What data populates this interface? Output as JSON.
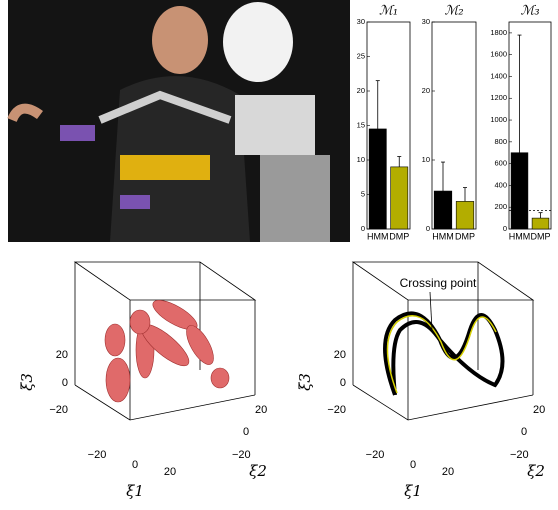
{
  "chart_data": [
    {
      "type": "bar",
      "title": "ℳ₁",
      "categories": [
        "HMM",
        "DMP"
      ],
      "colors": [
        "#000000",
        "#b3ad00"
      ],
      "values": [
        14.5,
        9
      ],
      "errors": [
        7,
        1.5
      ],
      "ylim": [
        0,
        30
      ],
      "yticks": [
        0,
        5,
        10,
        15,
        20,
        25,
        30
      ]
    },
    {
      "type": "bar",
      "title": "ℳ₂",
      "categories": [
        "HMM",
        "DMP"
      ],
      "colors": [
        "#000000",
        "#b3ad00"
      ],
      "values": [
        5.5,
        4
      ],
      "errors": [
        4.2,
        2
      ],
      "ylim": [
        0,
        30
      ],
      "yticks": [
        0,
        10,
        20,
        30
      ]
    },
    {
      "type": "bar",
      "title": "ℳ₃",
      "categories": [
        "HMM",
        "DMP"
      ],
      "colors": [
        "#000000",
        "#b3ad00"
      ],
      "values": [
        700,
        100
      ],
      "errors": [
        1080,
        50
      ],
      "reference_line": 170,
      "ylim": [
        0,
        1900
      ],
      "yticks": [
        0,
        200,
        400,
        600,
        800,
        1000,
        1200,
        1400,
        1600,
        1800
      ]
    }
  ],
  "plots3d": [
    {
      "zticks": [
        "20",
        "0",
        "−20"
      ],
      "xticks": [
        "−20",
        "0",
        "20"
      ],
      "yticks": [
        "20",
        "0",
        "−20"
      ],
      "xlabel": "ξ1",
      "ylabel": "ξ2",
      "zlabel": "ξ3"
    },
    {
      "zticks": [
        "20",
        "0",
        "−20"
      ],
      "xticks": [
        "−20",
        "0",
        "20"
      ],
      "yticks": [
        "20",
        "0",
        "−20"
      ],
      "xlabel": "ξ1",
      "ylabel": "ξ2",
      "zlabel": "ξ3",
      "annotation": "Crossing point"
    }
  ]
}
